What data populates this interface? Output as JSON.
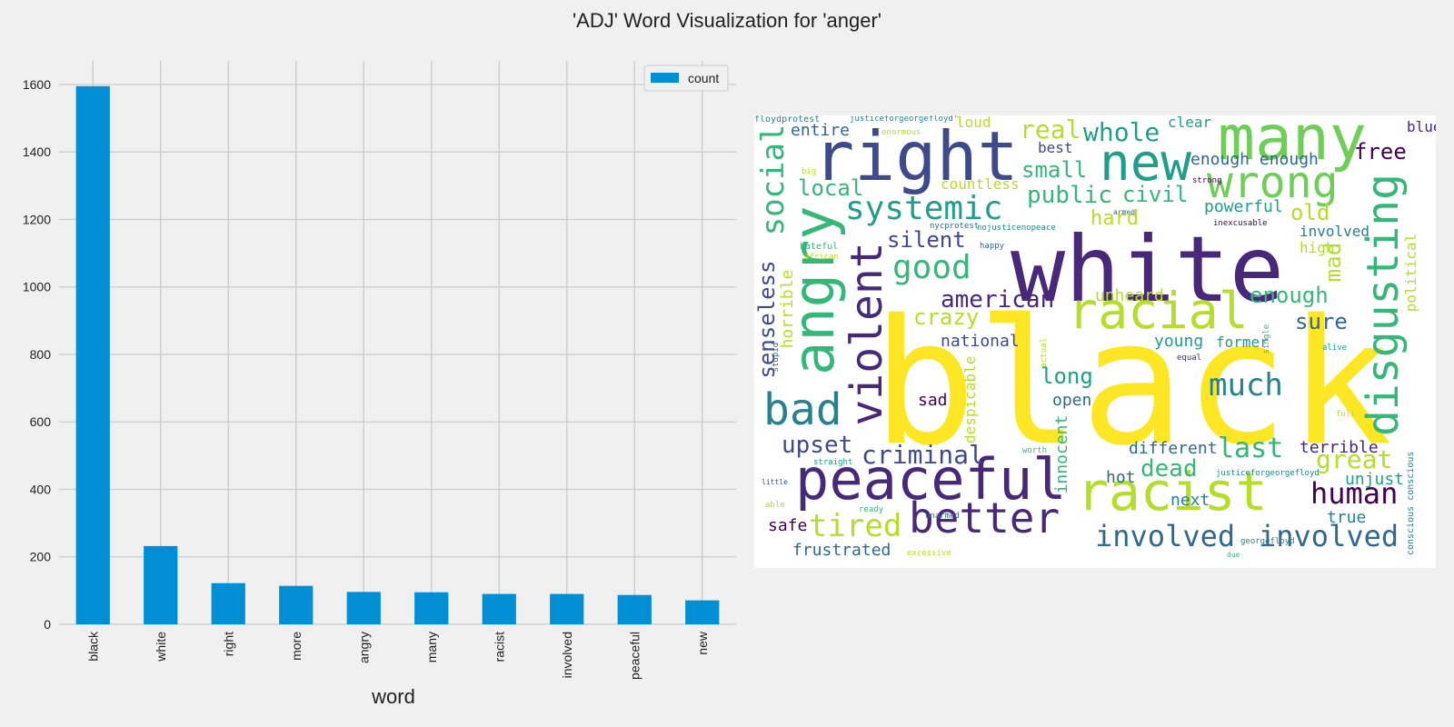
{
  "title": "'ADJ' Word Visualization for 'anger'",
  "chart_data": [
    {
      "type": "bar",
      "categories": [
        "black",
        "white",
        "right",
        "more",
        "angry",
        "many",
        "racist",
        "involved",
        "peaceful",
        "new"
      ],
      "series": [
        {
          "name": "count",
          "values": [
            1595,
            232,
            122,
            114,
            96,
            95,
            90,
            90,
            87,
            71
          ],
          "color": "#008fd5"
        }
      ],
      "xlabel": "word",
      "ylabel": "",
      "ylim": [
        0,
        1670
      ],
      "yticks": [
        0,
        200,
        400,
        600,
        800,
        1000,
        1200,
        1400,
        1600
      ],
      "grid": true,
      "legend": "top-right"
    },
    {
      "type": "wordcloud",
      "palette": "viridis",
      "words": [
        "black",
        "white",
        "right",
        "many",
        "new",
        "angry",
        "racial",
        "racist",
        "peaceful",
        "better",
        "disgusting",
        "wrong",
        "violent",
        "bad",
        "systemic",
        "social",
        "human",
        "much",
        "involved",
        "involved",
        "good",
        "tired",
        "criminal",
        "upset",
        "senseless",
        "last",
        "whole",
        "real",
        "public",
        "civil",
        "small",
        "local",
        "silent",
        "american",
        "crazy",
        "enough",
        "enough enough",
        "free",
        "old",
        "sure",
        "mad",
        "great",
        "dead",
        "long",
        "hard",
        "powerful",
        "entire",
        "national",
        "different",
        "frustrated",
        "horrible",
        "innocent",
        "despicable",
        "unheard",
        "countless",
        "blue",
        "clear",
        "loud",
        "best",
        "young",
        "former",
        "terrible",
        "unjust",
        "next",
        "true",
        "safe",
        "hot",
        "open",
        "sad",
        "political",
        "high",
        "involved",
        "justiceforgeorgefloyd'",
        "enormous",
        "big",
        "nycprotest",
        "nojusticenopeace",
        "armed",
        "inexcusable",
        "strong",
        "happy",
        "hateful",
        "african",
        "stupid",
        "actual",
        "single",
        "alive",
        "equal",
        "full",
        "worth",
        "straight",
        "little",
        "able",
        "ready",
        "unarmed",
        "georgefloyd",
        "due",
        "excessive",
        "justiceforgeorgefloyd",
        "conscious conscious",
        "floydprotest"
      ]
    }
  ]
}
